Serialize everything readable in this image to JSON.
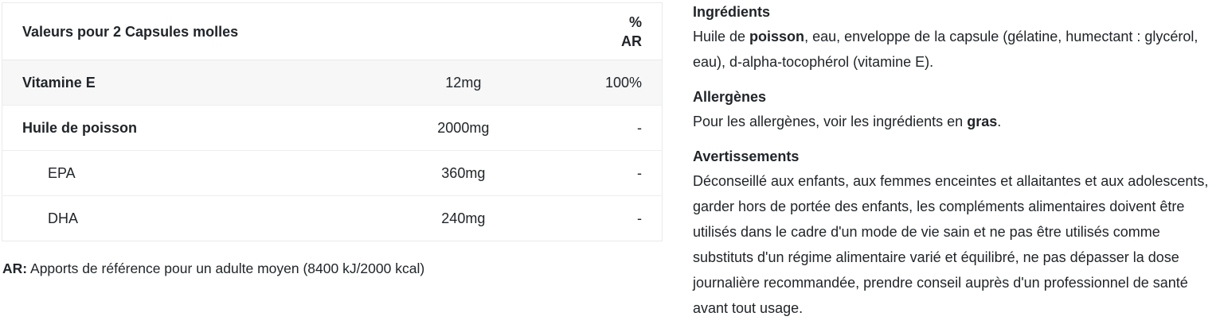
{
  "colors": {
    "text": "#212529",
    "table_border": "#e9eaeb",
    "row_divider": "#eeeeef",
    "stripe_row_bg": "#f7f7f8",
    "page_bg": "#ffffff"
  },
  "nutrition_table": {
    "header": {
      "label": "Valeurs pour 2 Capsules molles",
      "ar": "% AR"
    },
    "rows": [
      {
        "label": "Vitamine E",
        "amount": "12mg",
        "ar": "100%",
        "bold": true,
        "indent": false,
        "shaded": true
      },
      {
        "label": "Huile de poisson",
        "amount": "2000mg",
        "ar": "-",
        "bold": true,
        "indent": false,
        "shaded": false
      },
      {
        "label": "EPA",
        "amount": "360mg",
        "ar": "-",
        "bold": false,
        "indent": true,
        "shaded": false
      },
      {
        "label": "DHA",
        "amount": "240mg",
        "ar": "-",
        "bold": false,
        "indent": true,
        "shaded": false
      }
    ]
  },
  "footnote": {
    "label": "AR:",
    "text": "Apports de référence pour un adulte moyen (8400 kJ/2000 kcal)"
  },
  "info_sections": [
    {
      "title": "Ingrédients",
      "body": [
        {
          "text": "Huile de ",
          "bold": false
        },
        {
          "text": "poisson",
          "bold": true
        },
        {
          "text": ", eau, enveloppe de la capsule (gélatine, humectant : glycérol, eau), d-alpha-tocophérol (vitamine E).",
          "bold": false
        }
      ]
    },
    {
      "title": "Allergènes",
      "body": [
        {
          "text": "Pour les allergènes, voir les ingrédients en ",
          "bold": false
        },
        {
          "text": "gras",
          "bold": true
        },
        {
          "text": ".",
          "bold": false
        }
      ]
    },
    {
      "title": "Avertissements",
      "body": [
        {
          "text": "Déconseillé aux enfants, aux femmes enceintes et allaitantes et aux adolescents, garder hors de portée des enfants, les compléments alimentaires doivent être utilisés dans le cadre d'un mode de vie sain et ne pas être utilisés comme substituts d'un régime alimentaire varié et équilibré, ne pas dépasser la dose journalière recommandée, prendre conseil auprès d'un professionnel de santé avant tout usage.",
          "bold": false
        }
      ]
    }
  ]
}
